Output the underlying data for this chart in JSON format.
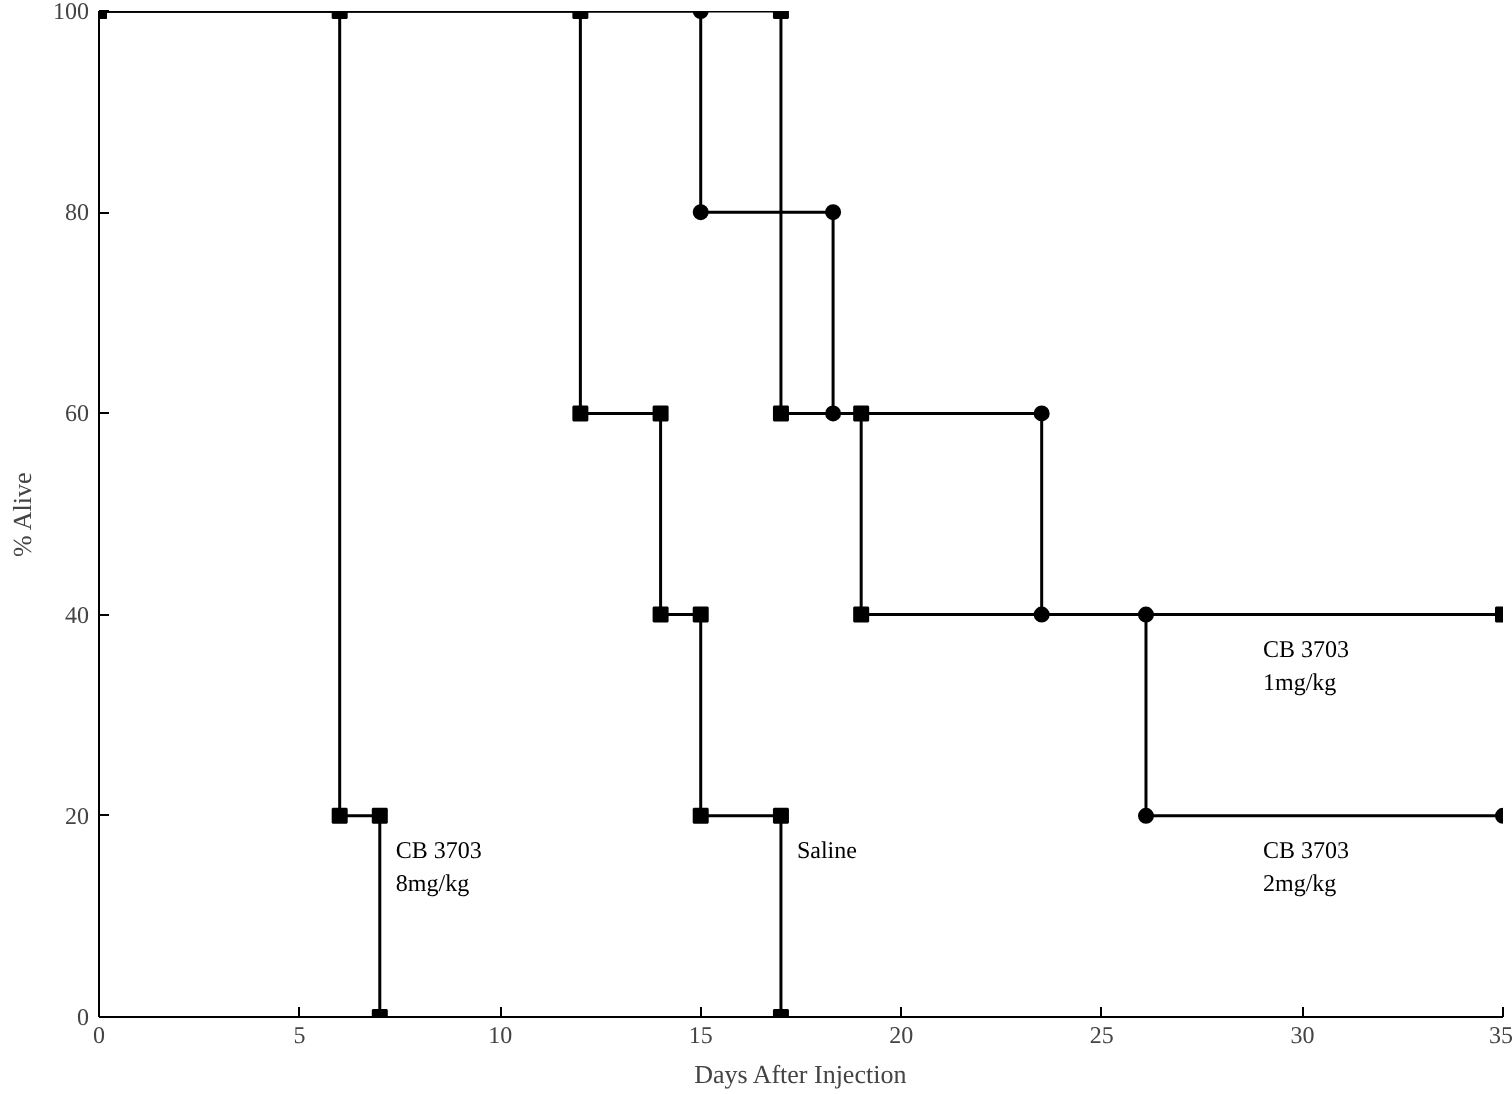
{
  "chart_data": {
    "type": "line",
    "xlabel": "Days After Injection",
    "ylabel": "% Alive",
    "xlim": [
      0,
      35
    ],
    "xticks": [
      0,
      5,
      10,
      15,
      20,
      25,
      30,
      35
    ],
    "ylim": [
      0,
      100
    ],
    "yticks": [
      0,
      20,
      40,
      60,
      80,
      100
    ],
    "grid": false,
    "line_style": "solid",
    "series": [
      {
        "name": "CB 3703\n8mg/kg",
        "color": "#000000",
        "marker": "square",
        "x": [
          0,
          6,
          6,
          7,
          7
        ],
        "values": [
          100,
          100,
          20,
          20,
          0
        ]
      },
      {
        "name": "Saline",
        "color": "#000000",
        "marker": "square",
        "x": [
          0,
          12,
          12,
          14,
          14,
          15,
          15,
          17,
          17
        ],
        "values": [
          100,
          100,
          60,
          60,
          40,
          40,
          20,
          20,
          0
        ]
      },
      {
        "name": "CB 3703\n1mg/kg",
        "color": "#000000",
        "marker": "square",
        "x": [
          0,
          17,
          17,
          19,
          19,
          35
        ],
        "values": [
          100,
          100,
          60,
          60,
          40,
          40
        ]
      },
      {
        "name": "CB 3703\n2mg/kg",
        "color": "#000000",
        "marker": "circle",
        "x": [
          0,
          15,
          15,
          18.3,
          18.3,
          23.5,
          23.5,
          26.1,
          26.1,
          35
        ],
        "values": [
          100,
          100,
          80,
          80,
          60,
          60,
          40,
          40,
          20,
          20
        ]
      }
    ]
  }
}
